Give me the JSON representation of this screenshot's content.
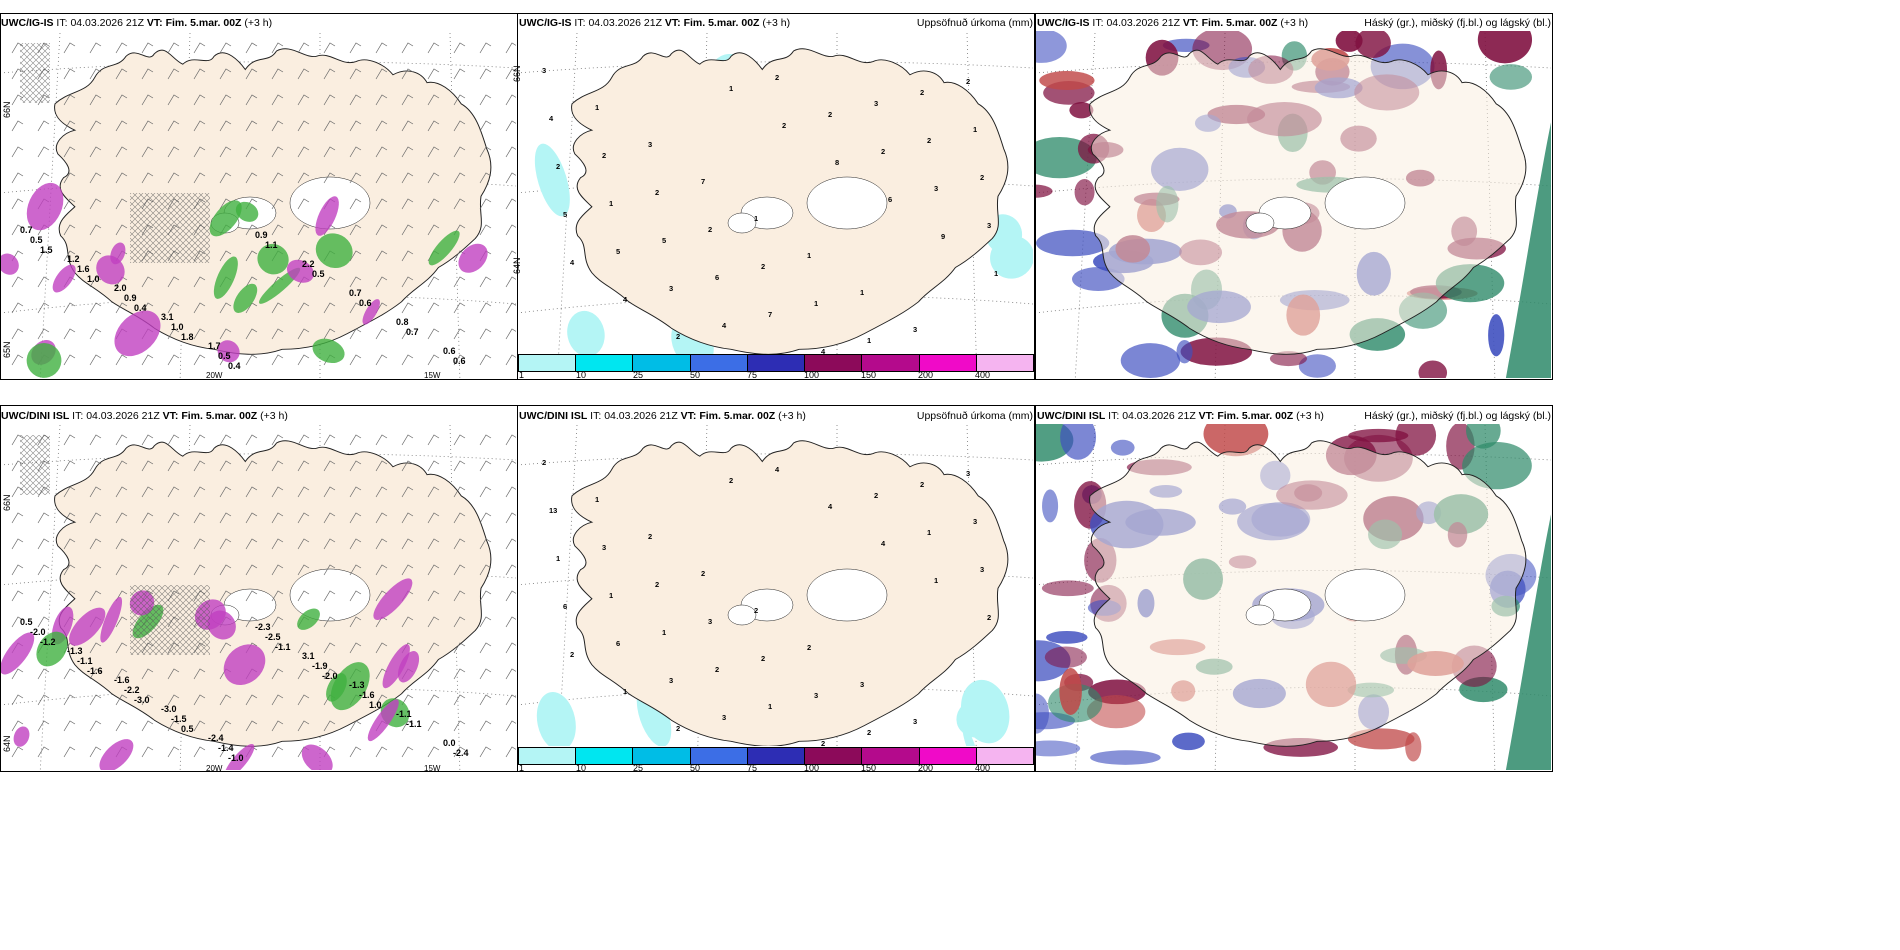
{
  "panels": [
    {
      "model": "UWC/IG-IS",
      "it": "04.03.2026 21Z",
      "vt": "Fim. 5.mar. 00Z",
      "lead": "(+3 h)",
      "right": "",
      "kind": "wind"
    },
    {
      "model": "UWC/IG-IS",
      "it": "04.03.2026 21Z",
      "vt": "Fim. 5.mar. 00Z",
      "lead": "(+3 h)",
      "right": "Uppsöfnuð úrkoma (mm)",
      "kind": "precip"
    },
    {
      "model": "UWC/IG-IS",
      "it": "04.03.2026 21Z",
      "vt": "Fim. 5.mar. 00Z",
      "lead": "(+3 h)",
      "right": "Háský (gr.), miðský (fj.bl.) og lágský (bl.)",
      "kind": "cloud"
    },
    {
      "model": "UWC/DINI ISL",
      "it": "04.03.2026 21Z",
      "vt": "Fim. 5.mar. 00Z",
      "lead": "(+3 h)",
      "right": "",
      "kind": "wind"
    },
    {
      "model": "UWC/DINI ISL",
      "it": "04.03.2026 21Z",
      "vt": "Fim. 5.mar. 00Z",
      "lead": "(+3 h)",
      "right": "Uppsöfnuð úrkoma (mm)",
      "kind": "precip"
    },
    {
      "model": "UWC/DINI ISL",
      "it": "04.03.2026 21Z",
      "vt": "Fim. 5.mar. 00Z",
      "lead": "(+3 h)",
      "right": "Háský (gr.), miðský (fj.bl.) og lágský (bl.)",
      "kind": "cloud"
    }
  ],
  "labels": {
    "it": "IT:",
    "vt": "VT:"
  },
  "grid_labels": {
    "lon_20": "20W",
    "lon_15": "15W",
    "lat_65": "65N",
    "lat_66": "66N",
    "lat_64": "64N",
    "lat_64b": "64N",
    "lat_66b": "66N"
  },
  "colorbar": {
    "ticks": [
      "1",
      "10",
      "25",
      "50",
      "75",
      "100",
      "150",
      "200",
      "400"
    ],
    "colors": [
      "#b4f5f5",
      "#00e6f0",
      "#00bde6",
      "#3c6ee6",
      "#2d2db4",
      "#8c0a5a",
      "#b40a8c",
      "#f00ac8",
      "#f5b4f0"
    ]
  },
  "precip_values_top": [
    "3",
    "1",
    "3",
    "7",
    "1",
    "1",
    "1",
    "3",
    "2",
    "4",
    "2",
    "2",
    "2",
    "2",
    "1",
    "1",
    "2",
    "1",
    "2",
    "1",
    "5",
    "6",
    "7",
    "4",
    "3",
    "2",
    "2",
    "5",
    "5",
    "3",
    "4",
    "2",
    "2",
    "2",
    "3",
    "3",
    "4",
    "4",
    "2",
    "1",
    "2",
    "8",
    "6",
    "9",
    "1"
  ],
  "precip_values_bottom": [
    "2",
    "1",
    "2",
    "2",
    "2",
    "2",
    "3",
    "3",
    "3",
    "13",
    "3",
    "2",
    "3",
    "2",
    "3",
    "2",
    "2",
    "3",
    "1",
    "1",
    "1",
    "2",
    "1",
    "2",
    "2",
    "1",
    "3",
    "6",
    "6",
    "3",
    "3",
    "4",
    "4",
    "4",
    "1",
    "2",
    "2",
    "1",
    "2",
    "2"
  ],
  "wind_values_top": [
    "0.7",
    "1.2",
    "2.0",
    "3.1",
    "1.7",
    "0.9",
    "2.2",
    "0.7",
    "0.8",
    "0.6",
    "0.5",
    "1.6",
    "0.9",
    "1.0",
    "0.5",
    "1.1",
    "0.5",
    "0.6",
    "0.7",
    "0.6",
    "1.5",
    "1.0",
    "0.4",
    "1.8",
    "0.4"
  ],
  "wind_values_bottom": [
    "0.5",
    "-1.3",
    "-1.6",
    "-3.0",
    "-2.4",
    "-2.3",
    "3.1",
    "-1.3",
    "-1.1",
    "0.0",
    "-2.0",
    "-1.1",
    "-2.2",
    "-1.5",
    "-1.4",
    "-2.5",
    "-1.9",
    "-1.6",
    "-1.1",
    "-2.4",
    "-1.2",
    "-1.6",
    "-3.0",
    "0.5",
    "-1.0",
    "-1.1",
    "-2.0",
    "1.0"
  ],
  "colors": {
    "land": "#faeee0",
    "coast": "#222222",
    "purple": "#c040c0",
    "magenta": "#a020a0",
    "green": "#40b040",
    "darkred": "#801040",
    "blue": "#4050c0",
    "teal": "#2e8a6a",
    "cyan": "#b4f5f5"
  }
}
